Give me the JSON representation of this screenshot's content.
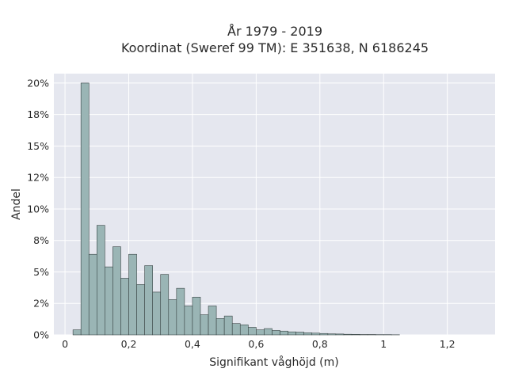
{
  "chart_data": {
    "type": "bar",
    "title_lines": [
      "År 1979 - 2019",
      "Koordinat (Sweref 99 TM): E 351638, N 6186245"
    ],
    "xlabel": "Signifikant våghöjd (m)",
    "ylabel": "Andel",
    "xlim": [
      -0.035,
      1.35
    ],
    "ylim": [
      0,
      0.2075
    ],
    "x_ticks": [
      0,
      0.2,
      0.4,
      0.6,
      0.8,
      1.0,
      1.2
    ],
    "x_tick_labels": [
      "0",
      "0,2",
      "0,4",
      "0,6",
      "0,8",
      "1",
      "1,2"
    ],
    "y_ticks": [
      0,
      0.025,
      0.05,
      0.075,
      0.1,
      0.125,
      0.15,
      0.175,
      0.2
    ],
    "y_tick_labels": [
      "0%",
      "2%",
      "5%",
      "8%",
      "10%",
      "12%",
      "15%",
      "18%",
      "20%"
    ],
    "grid": true,
    "bin_width": 0.025,
    "bin_starts": [
      0.025,
      0.05,
      0.075,
      0.1,
      0.125,
      0.15,
      0.175,
      0.2,
      0.225,
      0.25,
      0.275,
      0.3,
      0.325,
      0.35,
      0.375,
      0.4,
      0.425,
      0.45,
      0.475,
      0.5,
      0.525,
      0.55,
      0.575,
      0.6,
      0.625,
      0.65,
      0.675,
      0.7,
      0.725,
      0.75,
      0.775,
      0.8,
      0.825,
      0.85,
      0.875,
      0.9,
      0.925,
      0.95,
      0.975,
      1.0,
      1.025
    ],
    "values": [
      0.004,
      0.2,
      0.064,
      0.087,
      0.054,
      0.07,
      0.045,
      0.064,
      0.04,
      0.055,
      0.034,
      0.048,
      0.028,
      0.037,
      0.023,
      0.03,
      0.016,
      0.023,
      0.013,
      0.015,
      0.009,
      0.008,
      0.006,
      0.004,
      0.005,
      0.0035,
      0.003,
      0.0024,
      0.0022,
      0.0017,
      0.0014,
      0.0011,
      0.0008,
      0.0007,
      0.0005,
      0.0004,
      0.0003,
      0.0003,
      0.0002,
      0.0002,
      0.0001
    ],
    "colors": {
      "bar_fill": "#9ab5b5",
      "bar_stroke": "#3a4545",
      "plot_bg": "#e5e7ef",
      "grid": "#ffffff"
    }
  }
}
